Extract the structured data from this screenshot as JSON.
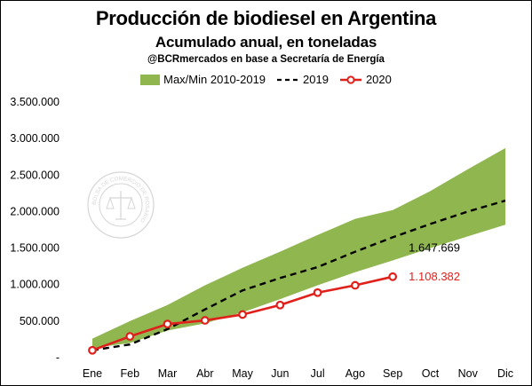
{
  "title": "Producción de biodiesel en Argentina",
  "subtitle": "Acumulado anual, en toneladas",
  "source": "@BCRmercados en base a Secretaría de Energía",
  "watermark_text": "BOLSA DE COMERCIO DE ROSARIO",
  "colors": {
    "band": "#8fb64f",
    "series2019": "#000000",
    "series2020": "#e0201b"
  },
  "chart_data": {
    "type": "line",
    "title": "Producción de biodiesel en Argentina",
    "subtitle": "Acumulado anual, en toneladas",
    "x": [
      "Ene",
      "Feb",
      "Mar",
      "Abr",
      "May",
      "Jun",
      "Jul",
      "Ago",
      "Sep",
      "Oct",
      "Nov",
      "Dic"
    ],
    "ylim": [
      0,
      3500000
    ],
    "yticks": [
      "-",
      "500.000",
      "1.000.000",
      "1.500.000",
      "2.000.000",
      "2.500.000",
      "3.000.000",
      "3.500.000"
    ],
    "grid": false,
    "legend_position": "top",
    "band": {
      "name": "Max/Min 2010-2019",
      "max": [
        260000,
        500000,
        720000,
        990000,
        1230000,
        1450000,
        1680000,
        1900000,
        2020000,
        2280000,
        2580000,
        2870000
      ],
      "min": [
        130000,
        200000,
        370000,
        470000,
        620000,
        800000,
        990000,
        1170000,
        1330000,
        1500000,
        1660000,
        1820000
      ]
    },
    "series": [
      {
        "name": "2019",
        "style": "dashed",
        "values": [
          100000,
          180000,
          390000,
          660000,
          920000,
          1090000,
          1240000,
          1450000,
          1647669,
          1830000,
          2000000,
          2150000
        ]
      },
      {
        "name": "2020",
        "style": "solid-markers",
        "values": [
          100000,
          290000,
          460000,
          510000,
          590000,
          720000,
          890000,
          990000,
          1108382,
          null,
          null,
          null
        ]
      }
    ],
    "annotations": [
      {
        "series": "2019",
        "text": "1.647.669"
      },
      {
        "series": "2020",
        "text": "1.108.382"
      }
    ]
  }
}
